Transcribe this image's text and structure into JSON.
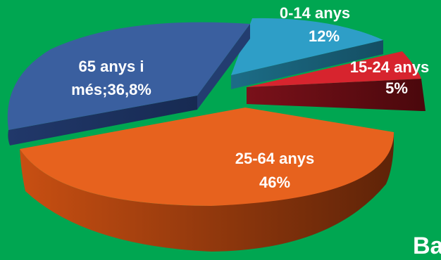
{
  "background_color": "#00a651",
  "corner_text": "Ba",
  "chart_data": {
    "type": "pie",
    "style": "3d-exploded",
    "slices": [
      {
        "category": "0-14 anys",
        "value": 12,
        "label_lines": [
          "0-14 anys",
          "12%"
        ],
        "color": "#2e9ec7",
        "side_color": "#1d5f79"
      },
      {
        "category": "15-24 anys",
        "value": 5,
        "label_lines": [
          "15-24 anys",
          "5%"
        ],
        "color": "#d7242e",
        "side_color": "#5c0d12"
      },
      {
        "category": "25-64 anys",
        "value": 46,
        "label_lines": [
          "25-64 anys",
          "46%"
        ],
        "color": "#e7621e",
        "side_color": "#7a300c"
      },
      {
        "category": "65 anys i més",
        "value": 36.8,
        "label_lines": [
          "65 anys i",
          "més;36,8%"
        ],
        "color": "#3a5f9f",
        "side_color": "#1c2f55"
      }
    ]
  }
}
